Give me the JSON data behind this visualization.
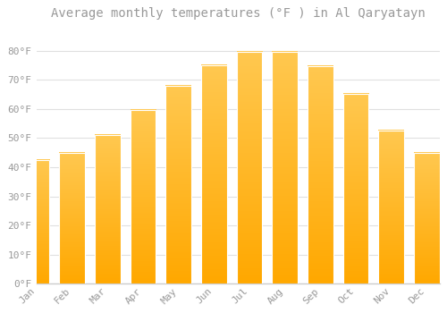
{
  "title": "Average monthly temperatures (°F ) in Al Qaryatayn",
  "months": [
    "Jan",
    "Feb",
    "Mar",
    "Apr",
    "May",
    "Jun",
    "Jul",
    "Aug",
    "Sep",
    "Oct",
    "Nov",
    "Dec"
  ],
  "values": [
    42.5,
    45.0,
    51.0,
    59.5,
    68.0,
    75.0,
    79.5,
    79.5,
    74.5,
    65.0,
    52.5,
    45.0
  ],
  "bar_color_top": "#FFC846",
  "bar_color_bottom": "#F5A800",
  "background_color": "#FFFFFF",
  "plot_bg_color": "#FFFFFF",
  "grid_color": "#E0E0E0",
  "text_color": "#999999",
  "axis_color": "#CCCCCC",
  "ylim": [
    0,
    88
  ],
  "yticks": [
    0,
    10,
    20,
    30,
    40,
    50,
    60,
    70,
    80
  ],
  "ytick_labels": [
    "0°F",
    "10°F",
    "20°F",
    "30°F",
    "40°F",
    "50°F",
    "60°F",
    "70°F",
    "80°F"
  ],
  "title_fontsize": 10,
  "tick_fontsize": 8,
  "bar_width": 0.72,
  "figsize": [
    5.0,
    3.5
  ],
  "dpi": 100
}
